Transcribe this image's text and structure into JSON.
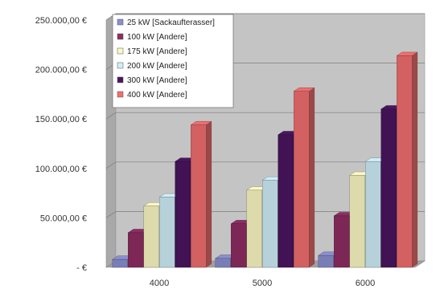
{
  "chart_data": {
    "type": "bar",
    "categories": [
      "4000",
      "5000",
      "6000"
    ],
    "series": [
      {
        "name": "25  kW [Sackaufterasser]",
        "values": [
          8000,
          9000,
          12000
        ]
      },
      {
        "name": "100 kW [Andere]",
        "values": [
          35000,
          44000,
          52000
        ]
      },
      {
        "name": "175 kW [Andere]",
        "values": [
          62000,
          78000,
          93000
        ]
      },
      {
        "name": "200 kW [Andere]",
        "values": [
          71000,
          88000,
          107000
        ]
      },
      {
        "name": "300 kW [Andere]",
        "values": [
          107000,
          134000,
          160000
        ]
      },
      {
        "name": "400 kW [Andere]",
        "values": [
          144000,
          178000,
          214000
        ]
      }
    ],
    "colors": [
      "#8a8fd0",
      "#8e2c63",
      "#fbf8c3",
      "#cfeef7",
      "#4a1560",
      "#f06e6e"
    ],
    "ylim": [
      0,
      250000
    ],
    "yticks": [
      0,
      50000,
      100000,
      150000,
      200000,
      250000
    ],
    "ytick_labels": [
      "-   €",
      "50.000,00 €",
      "100.000,00 €",
      "150.000,00 €",
      "200.000,00 €",
      "250.000,00 €"
    ],
    "xlabel": "",
    "ylabel": "",
    "title": "",
    "legend_position": "top-left",
    "grid": true,
    "style": "3d-clustered-column"
  }
}
